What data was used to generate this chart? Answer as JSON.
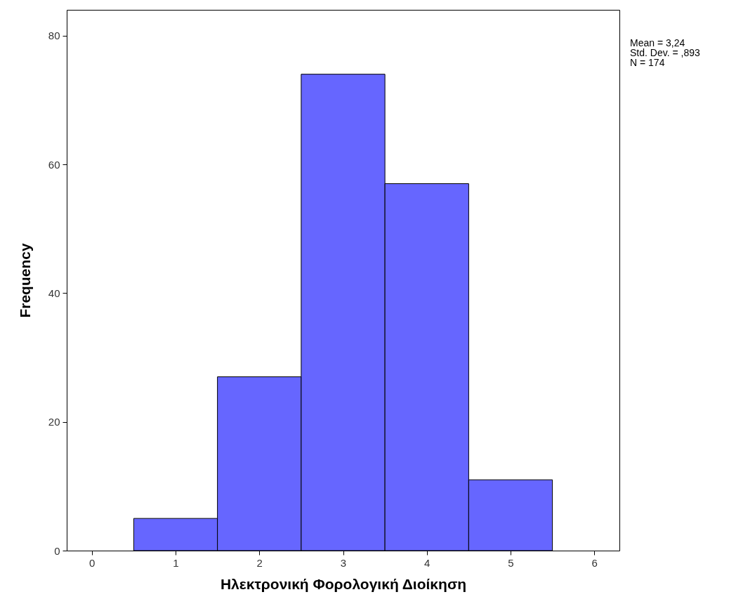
{
  "chart_data": {
    "type": "histogram",
    "xlabel": "Ηλεκτρονική Φορολογική Διοίκηση",
    "ylabel": "Frequency",
    "bins": [
      0.5,
      1.5,
      2.5,
      3.5,
      4.5,
      5.5
    ],
    "values": [
      5,
      27,
      74,
      57,
      11
    ],
    "color": "#6666ff",
    "xlim": [
      -0.3,
      6.3
    ],
    "ylim": [
      0,
      84
    ],
    "xticks": [
      0,
      1,
      2,
      3,
      4,
      5,
      6
    ],
    "yticks": [
      0,
      20,
      40,
      60,
      80
    ],
    "annotations": [
      "Mean = 3,24",
      "Std. Dev. = ,893",
      "N = 174"
    ]
  }
}
